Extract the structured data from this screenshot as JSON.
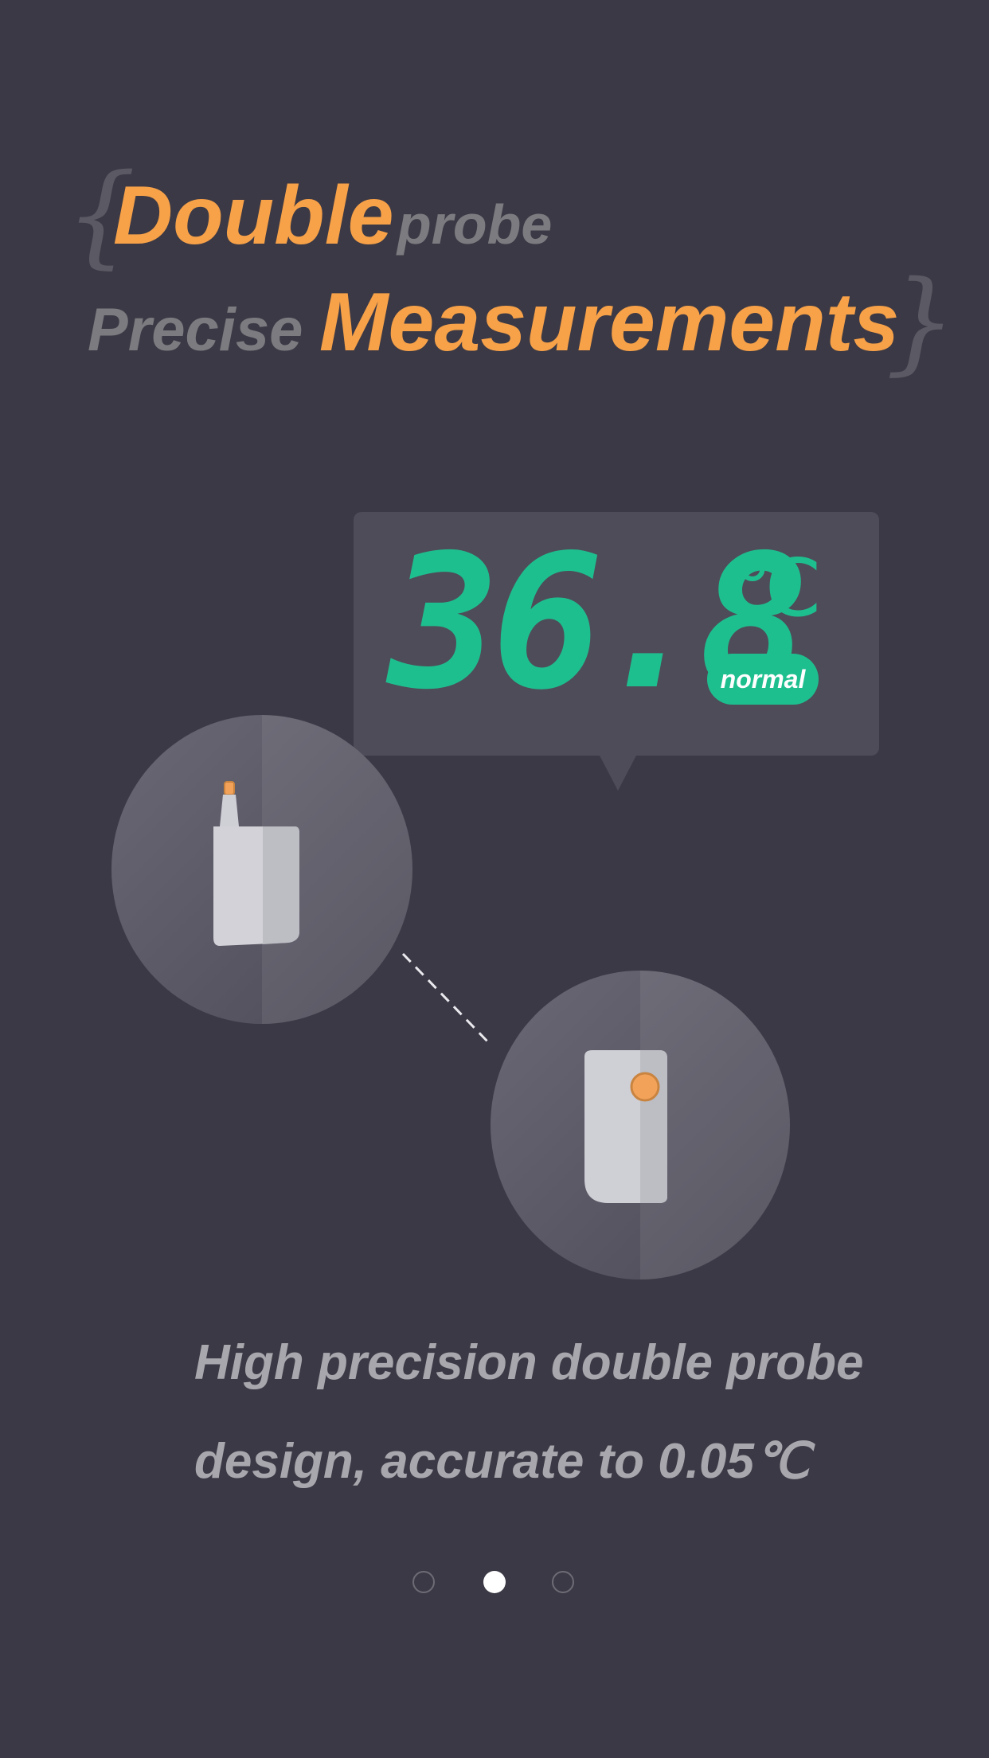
{
  "headline": {
    "line1": {
      "highlight": "Double",
      "rest": "probe"
    },
    "line2": {
      "lead": "Precise",
      "highlight": "Measurements"
    },
    "brace_open": "{",
    "brace_close": "}"
  },
  "reading": {
    "value": "36.8",
    "unit": "℃",
    "status": "normal"
  },
  "probes": {
    "left_icon": "handheld-probe-icon",
    "right_icon": "patch-probe-icon"
  },
  "description": {
    "line1": "High precision double probe",
    "line2": "design, accurate to 0.05℃"
  },
  "pagination": {
    "total": 3,
    "active_index": 1
  },
  "colors": {
    "background": "#3b3945",
    "accent_orange": "#f7a148",
    "accent_green": "#1ebf8f",
    "muted_text": "#7c7b80"
  }
}
